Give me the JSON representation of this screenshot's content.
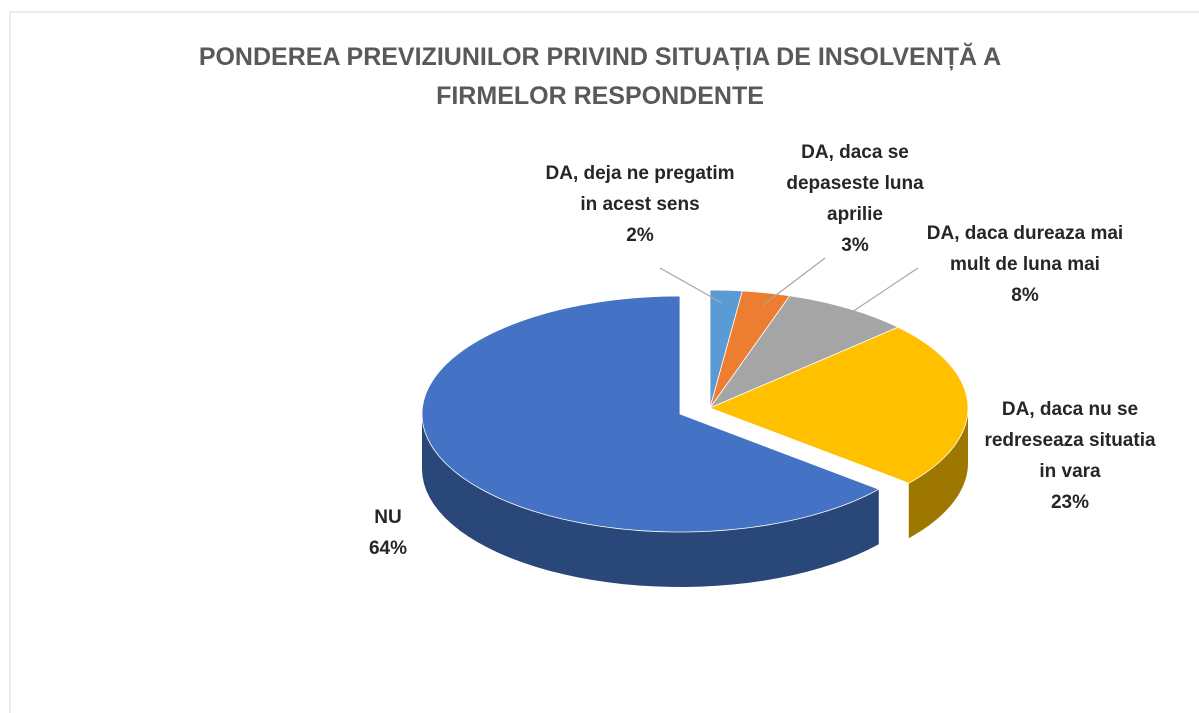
{
  "chart_data": {
    "type": "pie",
    "title": "PONDEREA PREVIZIUNILOR PRIVIND SITUAȚIA DE INSOLVENȚĂ A FIRMELOR RESPONDENTE",
    "categories": [
      "DA, deja ne pregatim in acest sens",
      "DA, daca se depaseste luna aprilie",
      "DA, daca dureaza mai mult de luna mai",
      "DA, daca nu se redreseaza situatia in vara",
      "NU"
    ],
    "values": [
      2,
      3,
      8,
      23,
      64
    ],
    "value_labels": [
      "2%",
      "3%",
      "8%",
      "23%",
      "64%"
    ],
    "colors": [
      "#5b9bd5",
      "#ed7d31",
      "#a5a5a5",
      "#ffc000",
      "#4472c4"
    ]
  }
}
